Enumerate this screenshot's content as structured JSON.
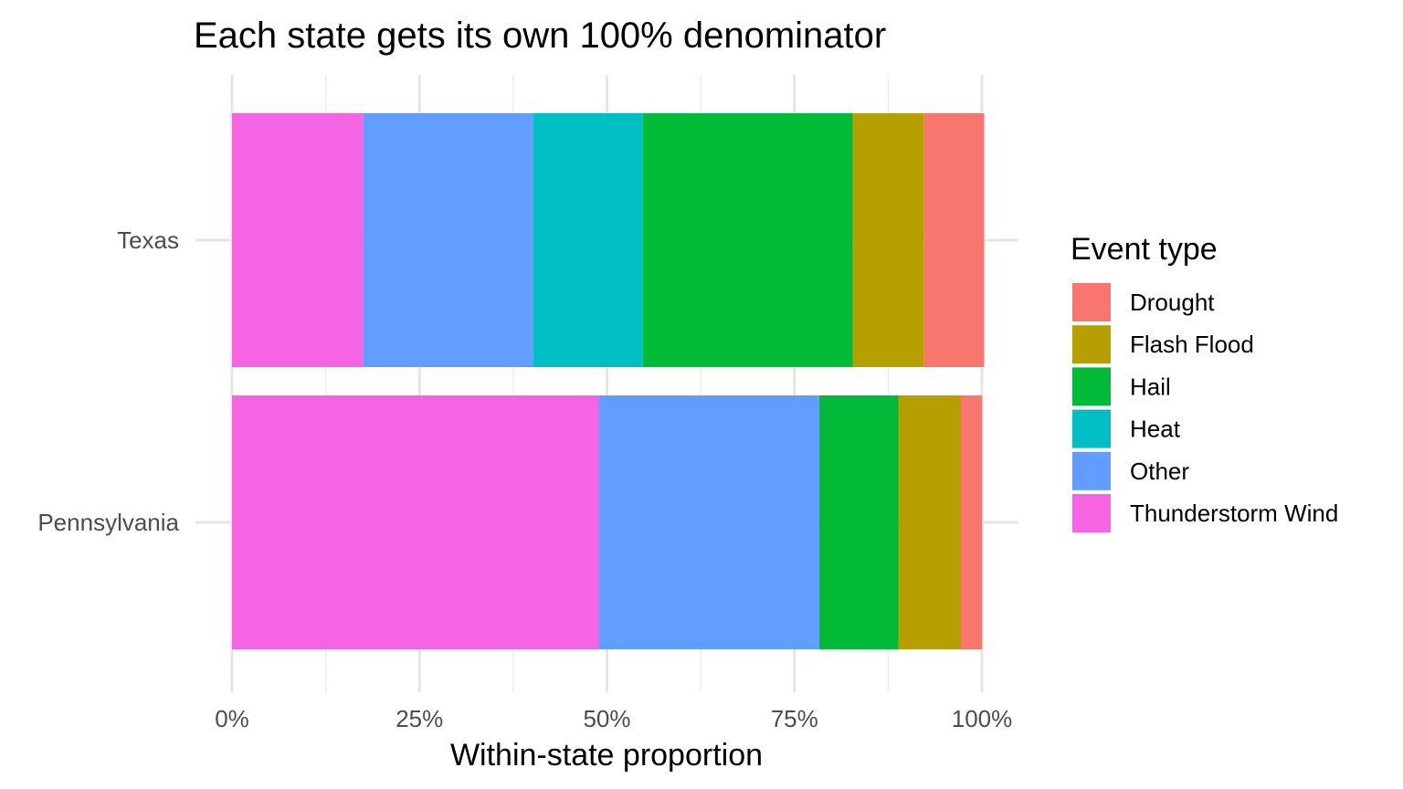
{
  "chart_data": {
    "type": "bar",
    "orientation": "horizontal",
    "stacked": "percent",
    "title": "Each state gets its own 100% denominator",
    "xlabel": "Within-state proportion",
    "ylabel": "",
    "xlim": [
      0,
      1
    ],
    "x_ticks": [
      {
        "value": 0,
        "label": "0%"
      },
      {
        "value": 0.25,
        "label": "25%"
      },
      {
        "value": 0.5,
        "label": "50%"
      },
      {
        "value": 0.75,
        "label": "75%"
      },
      {
        "value": 1,
        "label": "100%"
      }
    ],
    "categories": [
      "Texas",
      "Pennsylvania"
    ],
    "stack_order": [
      "Thunderstorm Wind",
      "Other",
      "Heat",
      "Hail",
      "Flash Flood",
      "Drought"
    ],
    "series": [
      {
        "name": "Drought",
        "color": "#F8766D",
        "values": [
          0.08,
          0.028
        ]
      },
      {
        "name": "Flash Flood",
        "color": "#B79F00",
        "values": [
          0.095,
          0.083
        ]
      },
      {
        "name": "Hail",
        "color": "#00BA38",
        "values": [
          0.28,
          0.106
        ]
      },
      {
        "name": "Heat",
        "color": "#00BFC4",
        "values": [
          0.146,
          0.0
        ]
      },
      {
        "name": "Other",
        "color": "#619CFF",
        "values": [
          0.227,
          0.294
        ]
      },
      {
        "name": "Thunderstorm Wind",
        "color": "#F564E3",
        "values": [
          0.175,
          0.489
        ]
      }
    ],
    "legend": {
      "title": "Event type",
      "position": "right"
    },
    "grid": true
  }
}
